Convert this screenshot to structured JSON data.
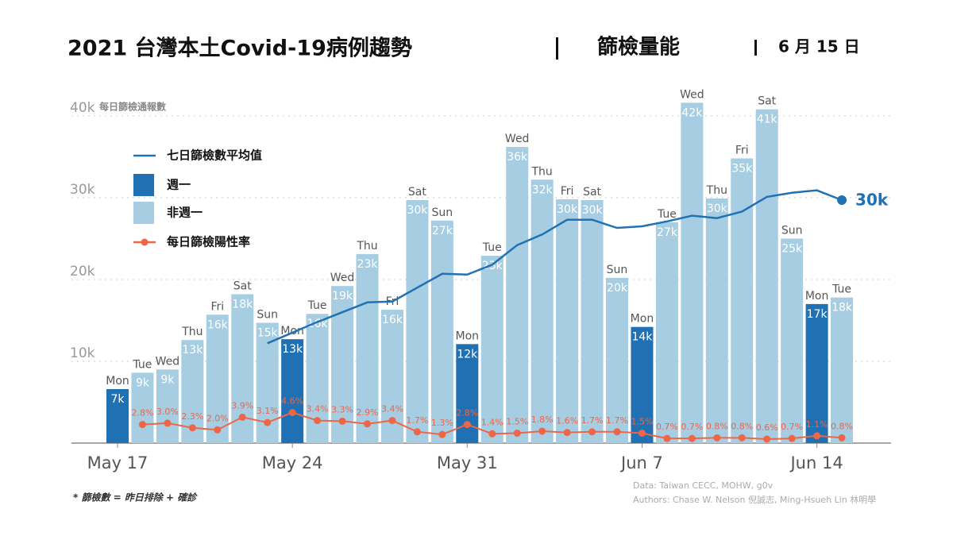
{
  "chart_data": {
    "type": "bar",
    "title": "2021 台灣本土Covid-19病例趨勢",
    "subtitle": "篩檢量能",
    "date": "6 月 15 日",
    "y_label": "每日篩檢通報數",
    "footnote": "* 篩檢數 = 昨日排除 + 確診",
    "source": "Data: Taiwan CECC, MOHW, g0v",
    "authors": "Authors: Chase W. Nelson 倪誠志, Ming-Hsueh Lin 林明學",
    "categories": [
      "May 17",
      null,
      null,
      null,
      null,
      null,
      null,
      "May 24",
      null,
      null,
      null,
      null,
      null,
      null,
      "May 31",
      null,
      null,
      null,
      null,
      null,
      null,
      "Jun  7",
      null,
      null,
      null,
      null,
      null,
      null,
      "Jun 14",
      null
    ],
    "weekdays": [
      "Mon",
      "Tue",
      "Wed",
      "Thu",
      "Fri",
      "Sat",
      "Sun",
      "Mon",
      "Tue",
      "Wed",
      "Thu",
      "Fri",
      "Sat",
      "Sun",
      "Mon",
      "Tue",
      "Wed",
      "Thu",
      "Fri",
      "Sat",
      "Sun",
      "Mon",
      "Tue",
      "Wed",
      "Thu",
      "Fri",
      "Sat",
      "Sun",
      "Mon",
      "Tue"
    ],
    "ylim": [
      0,
      43000
    ],
    "yticks": [
      {
        "value": 10000,
        "label": "10k"
      },
      {
        "value": 20000,
        "label": "20k"
      },
      {
        "value": 30000,
        "label": "30k"
      },
      {
        "value": 40000,
        "label": "40k"
      }
    ],
    "y2lim": [
      0,
      53
    ],
    "grid": true,
    "series": [
      {
        "name": "七日篩檢數平均值",
        "type": "line",
        "color": "#2171b5",
        "values": [
          null,
          null,
          null,
          null,
          null,
          null,
          12200,
          13500,
          14800,
          16000,
          17200,
          17300,
          19000,
          20700,
          20600,
          21800,
          24200,
          25500,
          27300,
          27300,
          26300,
          26500,
          27100,
          27800,
          27500,
          28300,
          30100,
          30600,
          30900,
          29700
        ],
        "value_labels": [
          null,
          null,
          null,
          null,
          null,
          null,
          null,
          null,
          null,
          null,
          null,
          null,
          null,
          null,
          null,
          null,
          null,
          null,
          null,
          null,
          null,
          null,
          null,
          null,
          null,
          null,
          null,
          null,
          null,
          "30k"
        ]
      },
      {
        "name": "週一",
        "type": "bar",
        "color": "#2070b4",
        "values": [
          6600,
          null,
          null,
          null,
          null,
          null,
          null,
          12700,
          null,
          null,
          null,
          null,
          null,
          null,
          12100,
          null,
          null,
          null,
          null,
          null,
          null,
          14200,
          null,
          null,
          null,
          null,
          null,
          null,
          17000,
          null
        ],
        "value_labels": [
          "7k",
          null,
          null,
          null,
          null,
          null,
          null,
          "13k",
          null,
          null,
          null,
          null,
          null,
          null,
          "12k",
          null,
          null,
          null,
          null,
          null,
          null,
          "14k",
          null,
          null,
          null,
          null,
          null,
          null,
          "17k",
          null
        ]
      },
      {
        "name": "非週一",
        "type": "bar",
        "color": "#a6cde2",
        "values": [
          null,
          8600,
          9000,
          12600,
          15700,
          18200,
          14700,
          null,
          15800,
          19200,
          23100,
          16300,
          29700,
          27200,
          null,
          22900,
          36200,
          32200,
          29800,
          29700,
          20200,
          null,
          27000,
          41600,
          29900,
          34800,
          40800,
          25000,
          null,
          17800
        ],
        "value_labels": [
          null,
          "9k",
          "9k",
          "13k",
          "16k",
          "18k",
          "15k",
          null,
          "16k",
          "19k",
          "23k",
          "16k",
          "30k",
          "27k",
          null,
          "23k",
          "36k",
          "32k",
          "30k",
          "30k",
          "20k",
          null,
          "27k",
          "42k",
          "30k",
          "35k",
          "41k",
          "25k",
          null,
          "18k"
        ]
      },
      {
        "name": "每日篩檢陽性率",
        "type": "line",
        "axis": "y2",
        "color": "#ef6548",
        "markers": true,
        "values": [
          null,
          2.8,
          3.0,
          2.3,
          2.0,
          3.9,
          3.1,
          4.6,
          3.4,
          3.3,
          2.9,
          3.4,
          1.7,
          1.3,
          2.8,
          1.4,
          1.5,
          1.8,
          1.6,
          1.7,
          1.7,
          1.5,
          0.7,
          0.7,
          0.8,
          0.8,
          0.6,
          0.7,
          1.1,
          0.8
        ],
        "value_labels": [
          null,
          "2.8%",
          "3.0%",
          "2.3%",
          "2.0%",
          "3.9%",
          "3.1%",
          "4.6%",
          "3.4%",
          "3.3%",
          "2.9%",
          "3.4%",
          "1.7%",
          "1.3%",
          "2.8%",
          "1.4%",
          "1.5%",
          "1.8%",
          "1.6%",
          "1.7%",
          "1.7%",
          "1.5%",
          "0.7%",
          "0.7%",
          "0.8%",
          "0.8%",
          "0.6%",
          "0.7%",
          "1.1%",
          "0.8%"
        ]
      }
    ]
  }
}
